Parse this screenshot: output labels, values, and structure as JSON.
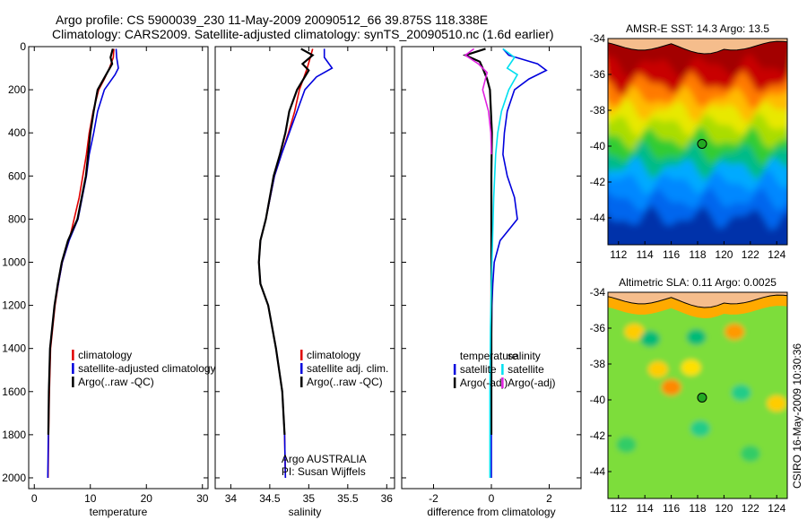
{
  "header": {
    "line1": "Argo profile: CS 5900039_230 11-May-2009 20090512_66 39.875S 118.338E",
    "line2": "Climatology: CARS2009. Satellite-adjusted climatology: synTS_20090510.nc (1.6d earlier)"
  },
  "colors": {
    "climatology": "#e00000",
    "satellite": "#0000dd",
    "argo": "#000000",
    "salinity_satellite": "#00e0f0",
    "salinity_argo": "#e020e0"
  },
  "chart_data": [
    {
      "type": "line",
      "xlabel": "temperature",
      "ylabel": "",
      "xlim": [
        -1,
        31
      ],
      "ylim": [
        2050,
        0
      ],
      "xticks": [
        0,
        10,
        20,
        30
      ],
      "yticks": [
        0,
        200,
        400,
        600,
        800,
        1000,
        1200,
        1400,
        1600,
        1800,
        2000
      ],
      "legend": {
        "placement": "lower-right",
        "entries": [
          "climatology",
          "satellite-adjusted climatology",
          "Argo(..raw -QC)"
        ]
      },
      "series": [
        {
          "name": "climatology",
          "color": "#e00000",
          "x": [
            14.2,
            14.1,
            13.4,
            12.5,
            11.5,
            10.5,
            9.8,
            9.3,
            8.0,
            6.2,
            5.0,
            4.3,
            3.7,
            3.3,
            2.9,
            2.7,
            2.55,
            2.45
          ],
          "y": [
            10,
            50,
            100,
            150,
            200,
            300,
            400,
            500,
            700,
            900,
            1000,
            1100,
            1200,
            1300,
            1400,
            1600,
            1800,
            2000
          ]
        },
        {
          "name": "satellite-adjusted climatology",
          "color": "#0000dd",
          "x": [
            14.6,
            14.7,
            15.0,
            14.4,
            12.5,
            11.3,
            10.6,
            9.8,
            9.3,
            7.8,
            6.2,
            5.0,
            4.3,
            3.6,
            3.2,
            2.8,
            2.6,
            2.5,
            2.4
          ],
          "y": [
            10,
            50,
            100,
            130,
            200,
            300,
            400,
            500,
            600,
            800,
            900,
            1000,
            1100,
            1200,
            1300,
            1400,
            1600,
            1800,
            2000
          ]
        },
        {
          "name": "Argo(..raw -QC)",
          "color": "#000000",
          "x": [
            14.0,
            13.6,
            13.9,
            12.8,
            11.3,
            10.6,
            10.0,
            9.6,
            9.2,
            7.7,
            6.0,
            4.9,
            4.2,
            3.6,
            3.2,
            2.8,
            2.6,
            2.5
          ],
          "y": [
            10,
            50,
            80,
            130,
            200,
            300,
            400,
            500,
            600,
            800,
            900,
            1000,
            1100,
            1200,
            1300,
            1400,
            1600,
            1800
          ]
        }
      ]
    },
    {
      "type": "line",
      "xlabel": "salinity",
      "ylabel": "",
      "xlim": [
        33.8,
        36.1
      ],
      "ylim": [
        2050,
        0
      ],
      "xticks": [
        34,
        34.5,
        35,
        35.5,
        36
      ],
      "xtick_labels": [
        "34",
        "34.5",
        "35",
        "35.5",
        "36"
      ],
      "legend": {
        "placement": "lower-right",
        "entries": [
          "climatology",
          "satellite adj. clim.",
          "Argo(..raw -QC)"
        ]
      },
      "annotations": [
        "Argo AUSTRALIA",
        "PI: Susan Wijffels"
      ],
      "series": [
        {
          "name": "climatology",
          "color": "#e00000",
          "x": [
            35.05,
            35.02,
            34.98,
            34.93,
            34.88,
            34.82,
            34.74,
            34.65,
            34.56,
            34.45,
            34.38,
            34.36,
            34.38,
            34.48,
            34.58,
            34.66,
            34.69,
            34.7
          ],
          "y": [
            10,
            50,
            100,
            150,
            200,
            300,
            400,
            500,
            600,
            800,
            900,
            1000,
            1100,
            1200,
            1400,
            1600,
            1800,
            2000
          ]
        },
        {
          "name": "satellite adj. clim.",
          "color": "#0000dd",
          "x": [
            35.2,
            35.2,
            35.3,
            35.1,
            34.95,
            34.85,
            34.75,
            34.65,
            34.56,
            34.45,
            34.38,
            34.36,
            34.38,
            34.48,
            34.58,
            34.66,
            34.69,
            34.7
          ],
          "y": [
            10,
            50,
            100,
            140,
            200,
            300,
            400,
            500,
            600,
            800,
            900,
            1000,
            1100,
            1200,
            1400,
            1600,
            1800,
            2000
          ]
        },
        {
          "name": "Argo(..raw -QC)",
          "color": "#000000",
          "x": [
            34.9,
            35.05,
            34.92,
            35.0,
            34.85,
            34.75,
            34.7,
            34.63,
            34.55,
            34.45,
            34.38,
            34.36,
            34.38,
            34.48,
            34.58,
            34.66,
            34.69
          ],
          "y": [
            10,
            40,
            80,
            110,
            200,
            300,
            400,
            500,
            600,
            800,
            900,
            1000,
            1100,
            1200,
            1400,
            1600,
            1800
          ]
        }
      ]
    },
    {
      "type": "line",
      "xlabel": "difference from climatology",
      "ylabel": "",
      "xlim": [
        -3.1,
        3.1
      ],
      "ylim": [
        2050,
        0
      ],
      "xticks": [
        -2,
        0,
        2
      ],
      "legend": {
        "placement": "lower-right",
        "groups": [
          {
            "heading": "temperature",
            "entries": [
              "satellite",
              "Argo(-adj)"
            ]
          },
          {
            "heading": "salinity",
            "entries": [
              "satellite",
              "Argo(-adj)"
            ]
          }
        ]
      },
      "series": [
        {
          "name": "satellite",
          "quantity": "temperature",
          "color": "#0000dd",
          "x": [
            0.4,
            0.6,
            1.6,
            1.9,
            1.3,
            0.8,
            0.55,
            0.45,
            0.4,
            0.55,
            0.8,
            0.9,
            0.6,
            0.3,
            0.1,
            0.05,
            0.02,
            0.0,
            0.0,
            0.0,
            0.0
          ],
          "y": [
            10,
            40,
            80,
            110,
            150,
            200,
            300,
            400,
            500,
            600,
            700,
            800,
            850,
            900,
            1000,
            1100,
            1200,
            1400,
            1600,
            1800,
            2000
          ]
        },
        {
          "name": "Argo(-adj)",
          "quantity": "temperature",
          "color": "#000000",
          "x": [
            -0.2,
            -0.9,
            -0.4,
            -0.3,
            -0.15,
            -0.05,
            0.02,
            0.0,
            0.0,
            0.0,
            0.0,
            0.0
          ],
          "y": [
            10,
            40,
            70,
            100,
            150,
            200,
            400,
            600,
            800,
            1000,
            1400,
            1800
          ]
        },
        {
          "name": "satellite",
          "quantity": "salinity",
          "color": "#00e0f0",
          "x": [
            0.4,
            0.8,
            0.55,
            0.9,
            0.6,
            0.35,
            0.22,
            0.15,
            0.08,
            0.04,
            0.0,
            -0.03,
            -0.05,
            -0.05
          ],
          "y": [
            10,
            50,
            100,
            130,
            200,
            300,
            400,
            500,
            700,
            900,
            1100,
            1300,
            1600,
            2000
          ]
        },
        {
          "name": "Argo(-adj)",
          "quantity": "salinity",
          "color": "#e020e0",
          "x": [
            -0.6,
            -0.9,
            -0.45,
            -0.15,
            -0.3,
            -0.1,
            -0.02,
            0.0
          ],
          "y": [
            10,
            40,
            80,
            120,
            200,
            300,
            400,
            500
          ]
        }
      ]
    },
    {
      "type": "heatmap",
      "title": "AMSR-E SST: 14.3 Argo: 13.5",
      "xlim": [
        111.2,
        124.8
      ],
      "ylim": [
        -45.5,
        -34
      ],
      "xticks": [
        112,
        114,
        116,
        118,
        120,
        122,
        124
      ],
      "yticks": [
        -34,
        -36,
        -38,
        -40,
        -42,
        -44
      ],
      "marker": {
        "lon": 118.338,
        "lat": -39.875
      },
      "bands": [
        {
          "lat": -34.5,
          "color": "#f5bd8c",
          "note": "land"
        },
        {
          "lat": -35.5,
          "color": "#a30000"
        },
        {
          "lat": -36.5,
          "color": "#c80000"
        },
        {
          "lat": -37.3,
          "color": "#ff7a00"
        },
        {
          "lat": -38.0,
          "color": "#ffbb00"
        },
        {
          "lat": -38.8,
          "color": "#e8e800"
        },
        {
          "lat": -39.6,
          "color": "#aadd00"
        },
        {
          "lat": -40.4,
          "color": "#33cc33"
        },
        {
          "lat": -41.2,
          "color": "#00bb88"
        },
        {
          "lat": -42.0,
          "color": "#00aaff"
        },
        {
          "lat": -43.0,
          "color": "#0088ff"
        },
        {
          "lat": -44.0,
          "color": "#0066ee"
        },
        {
          "lat": -45.0,
          "color": "#0033aa"
        }
      ]
    },
    {
      "type": "heatmap",
      "title": "Altimetric SLA: 0.11 Argo: 0.0025",
      "xlim": [
        111.2,
        124.8
      ],
      "ylim": [
        -45.5,
        -34
      ],
      "xticks": [
        112,
        114,
        116,
        118,
        120,
        122,
        124
      ],
      "yticks": [
        -34,
        -36,
        -38,
        -40,
        -42,
        -44
      ],
      "marker": {
        "lon": 118.338,
        "lat": -39.875
      },
      "background": "#7ddd3a",
      "land_color": "#f5bd8c",
      "shelf_color": "#ffaa00",
      "anomalies": [
        {
          "lon": 113.2,
          "lat": -36.2,
          "color": "#ffcc00"
        },
        {
          "lon": 115.0,
          "lat": -38.3,
          "color": "#ffcc00"
        },
        {
          "lon": 116.0,
          "lat": -39.3,
          "color": "#ff8800"
        },
        {
          "lon": 117.5,
          "lat": -38.2,
          "color": "#ffe000"
        },
        {
          "lon": 120.8,
          "lat": -36.2,
          "color": "#ff9900"
        },
        {
          "lon": 124.0,
          "lat": -40.2,
          "color": "#ffcc00"
        },
        {
          "lon": 114.4,
          "lat": -36.6,
          "color": "#00bb77"
        },
        {
          "lon": 117.9,
          "lat": -36.5,
          "color": "#00bb77"
        },
        {
          "lon": 118.2,
          "lat": -41.6,
          "color": "#22cc88"
        },
        {
          "lon": 121.3,
          "lat": -39.6,
          "color": "#22cc88"
        },
        {
          "lon": 112.6,
          "lat": -42.5,
          "color": "#33cc66"
        },
        {
          "lon": 122.0,
          "lat": -43.0,
          "color": "#33cc66"
        }
      ]
    }
  ],
  "side_label": "CSIRO 16-May-2009 10:30:36"
}
